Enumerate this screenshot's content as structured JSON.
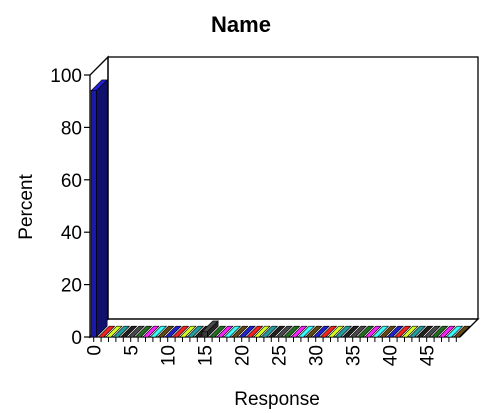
{
  "chart_data": {
    "type": "bar",
    "title": "Name",
    "xlabel": "Response",
    "ylabel": "Percent",
    "ylim": [
      0,
      100
    ],
    "yticks": [
      0,
      20,
      40,
      60,
      80,
      100
    ],
    "xtick_labels": [
      "0",
      "5",
      "10",
      "15",
      "20",
      "25",
      "30",
      "35",
      "40",
      "45"
    ],
    "grid": false,
    "legend": "none",
    "categories": [
      "0",
      "1",
      "2",
      "3",
      "4",
      "5",
      "6",
      "7",
      "8",
      "9",
      "10",
      "11",
      "12",
      "13",
      "14",
      "15",
      "16",
      "17",
      "18",
      "19",
      "20",
      "21",
      "22",
      "23",
      "24",
      "25",
      "26",
      "27",
      "28",
      "29",
      "30",
      "31",
      "32",
      "33",
      "34",
      "35",
      "36",
      "37",
      "38",
      "39",
      "40",
      "41",
      "42",
      "43",
      "44",
      "45",
      "46",
      "47",
      "48",
      "49"
    ],
    "values": [
      94.0,
      0,
      0,
      0,
      0,
      0,
      0,
      0,
      0,
      0,
      0,
      0,
      0,
      0,
      0,
      2.0,
      0,
      0,
      0,
      0,
      0,
      0,
      0,
      0,
      0,
      0,
      0,
      0,
      0,
      0,
      0,
      0,
      0,
      0,
      0,
      0,
      0,
      0,
      0,
      0,
      0,
      0,
      0,
      0,
      0,
      0,
      0,
      0,
      0,
      0
    ],
    "colors": [
      "#1a1aa8",
      "#c81a1a",
      "#a8c81a",
      "#1a8080",
      "#1a1a1a",
      "#3a3a3a",
      "#1a5a1a",
      "#c81ac8",
      "#2ad0d0",
      "#503a10"
    ]
  }
}
